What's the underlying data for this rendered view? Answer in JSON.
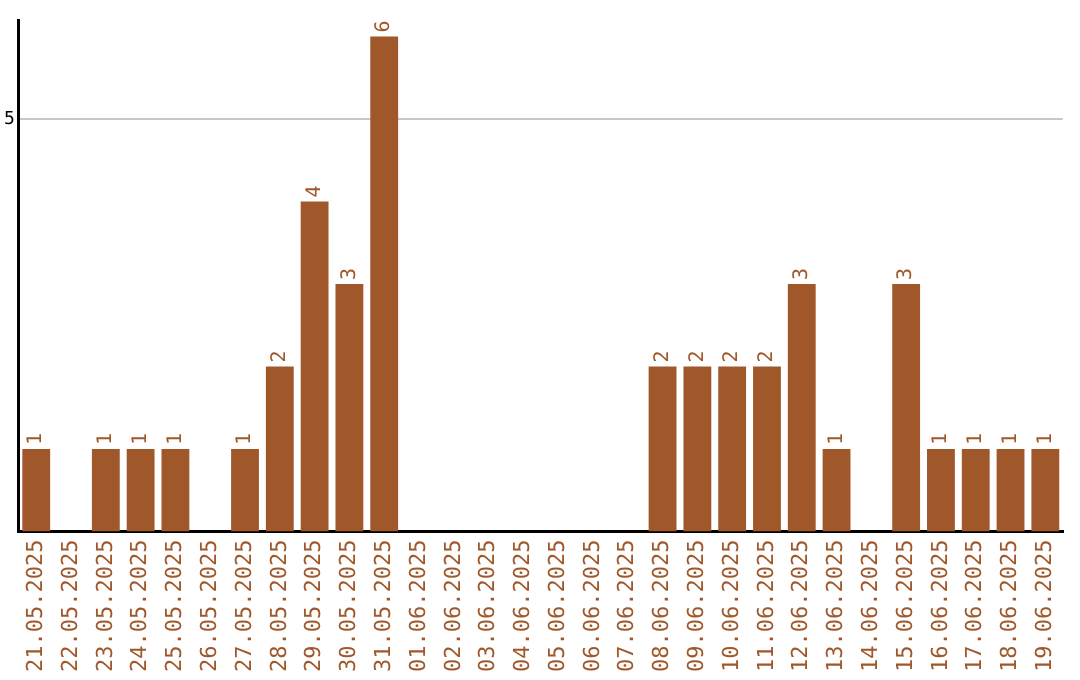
{
  "chart_data": {
    "type": "bar",
    "categories": [
      "21.05.2025",
      "22.05.2025",
      "23.05.2025",
      "24.05.2025",
      "25.05.2025",
      "26.05.2025",
      "27.05.2025",
      "28.05.2025",
      "29.05.2025",
      "30.05.2025",
      "31.05.2025",
      "01.06.2025",
      "02.06.2025",
      "03.06.2025",
      "04.06.2025",
      "05.06.2025",
      "06.06.2025",
      "07.06.2025",
      "08.06.2025",
      "09.06.2025",
      "10.06.2025",
      "11.06.2025",
      "12.06.2025",
      "13.06.2025",
      "14.06.2025",
      "15.06.2025",
      "16.06.2025",
      "17.06.2025",
      "18.06.2025",
      "19.06.2025"
    ],
    "values": [
      1,
      0,
      1,
      1,
      1,
      0,
      1,
      2,
      4,
      3,
      6,
      0,
      0,
      0,
      0,
      0,
      0,
      0,
      2,
      2,
      2,
      2,
      3,
      1,
      0,
      3,
      1,
      1,
      1,
      1
    ],
    "value_labels": [
      "1",
      null,
      "1",
      "1",
      "1",
      null,
      "1",
      "2",
      "4",
      "3",
      "6",
      null,
      null,
      null,
      null,
      null,
      null,
      null,
      "2",
      "2",
      "2",
      "2",
      "3",
      "1",
      null,
      "3",
      "1",
      "1",
      "1",
      "1"
    ],
    "color": "#a0582a",
    "ylim": [
      0,
      6.2
    ],
    "yticks": [
      5
    ],
    "grid": "y",
    "legend": false
  }
}
